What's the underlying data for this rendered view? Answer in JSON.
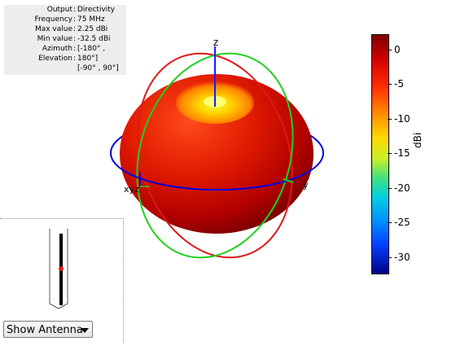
{
  "info": [
    {
      "key": "Output",
      "value": "Directivity"
    },
    {
      "key": "Frequency",
      "value": "75 MHz"
    },
    {
      "key": "Max value",
      "value": "2.25 dBi"
    },
    {
      "key": "Min value",
      "value": "-32.5 dBi"
    },
    {
      "key": "Azimuth",
      "value": "[-180° ,"
    },
    {
      "key": "Elevation",
      "value": "180°]"
    },
    {
      "key": "",
      "value": "[-90° , 90°]"
    }
  ],
  "axes": {
    "z": "z",
    "x": "x",
    "y": "y",
    "origin_labels": "xyz"
  },
  "colorbar": {
    "unit": "dBi",
    "ticks": [
      "0",
      "-5",
      "-10",
      "-15",
      "-20",
      "-25",
      "-30"
    ],
    "tick_values": [
      0,
      -5,
      -10,
      -15,
      -20,
      -25,
      -30
    ],
    "range": [
      -32.5,
      2.25
    ]
  },
  "control": {
    "select_label": "Show Antenna"
  }
}
